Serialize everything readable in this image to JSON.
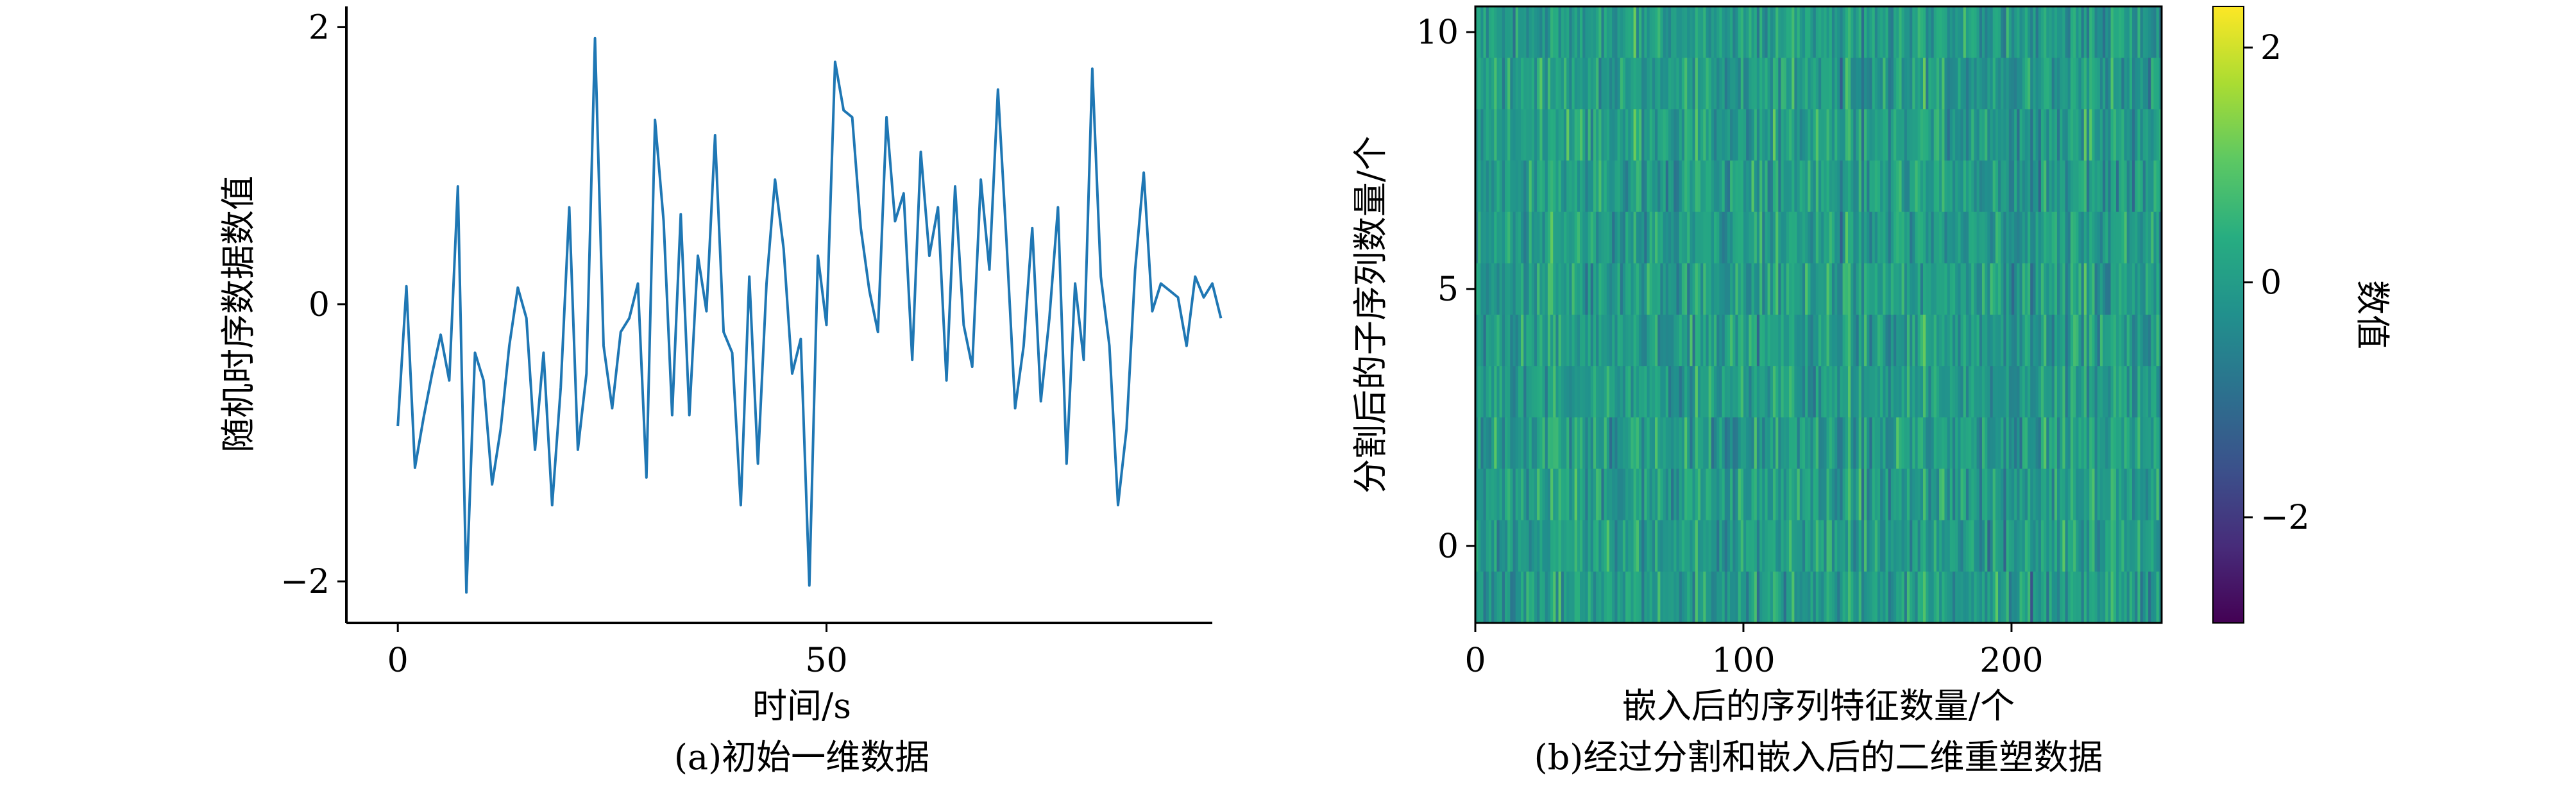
{
  "chart_data": [
    {
      "type": "line",
      "caption": "(a)初始一维数据",
      "xlabel": "时间/s",
      "ylabel": "随机时序数据数值",
      "xlim": [
        -6,
        95
      ],
      "ylim": [
        -2.3,
        2.15
      ],
      "xticks": [
        "0",
        "50"
      ],
      "yticks": [
        "−2",
        "0",
        "2"
      ],
      "xtick_values": [
        0,
        50
      ],
      "ytick_values": [
        -2,
        0,
        2
      ],
      "color": "#1f77b4",
      "grid": false,
      "series": [
        {
          "x": [
            0,
            1,
            2,
            3,
            4,
            5,
            6,
            7,
            8,
            9,
            10,
            11,
            12,
            13,
            14,
            15,
            16,
            17,
            18,
            19,
            20,
            21,
            22,
            23,
            24,
            25,
            26,
            27,
            28,
            29,
            30,
            31,
            32,
            33,
            34,
            35,
            36,
            37,
            38,
            39,
            40,
            41,
            42,
            43,
            44,
            45,
            46,
            47,
            48,
            49,
            50,
            51,
            52,
            53,
            54,
            55,
            56,
            57,
            58,
            59,
            60,
            61,
            62,
            63,
            64,
            65,
            66,
            67,
            68,
            69,
            70,
            71,
            72,
            73,
            74,
            75,
            76,
            77,
            78,
            79,
            80,
            81,
            82,
            83,
            84,
            85,
            86,
            87,
            88,
            89,
            90,
            91,
            92,
            93,
            94,
            95,
            96
          ],
          "y": [
            -0.88,
            0.13,
            -1.18,
            -0.82,
            -0.5,
            -0.22,
            -0.55,
            0.85,
            -2.08,
            -0.35,
            -0.55,
            -1.3,
            -0.9,
            -0.3,
            0.12,
            -0.1,
            -1.05,
            -0.35,
            -1.45,
            -0.6,
            0.7,
            -1.05,
            -0.5,
            1.92,
            -0.3,
            -0.75,
            -0.2,
            -0.1,
            0.15,
            -1.25,
            1.33,
            0.6,
            -0.8,
            0.65,
            -0.8,
            0.35,
            -0.05,
            1.22,
            -0.2,
            -0.35,
            -1.45,
            0.2,
            -1.15,
            0.15,
            0.9,
            0.4,
            -0.5,
            -0.25,
            -2.03,
            0.35,
            -0.15,
            1.75,
            1.4,
            1.35,
            0.55,
            0.1,
            -0.2,
            1.35,
            0.6,
            0.8,
            -0.4,
            1.1,
            0.35,
            0.7,
            -0.55,
            0.85,
            -0.15,
            -0.45,
            0.9,
            0.25,
            1.55,
            0.45,
            -0.75,
            -0.3,
            0.55,
            -0.7,
            -0.1,
            0.7,
            -1.15,
            0.15,
            -0.4,
            1.7,
            0.2,
            -0.3,
            -1.45,
            -0.9,
            0.25,
            0.95,
            -0.05,
            0.15,
            0.1,
            0.05,
            -0.3,
            0.2,
            0.05,
            0.15,
            -0.1
          ]
        }
      ]
    },
    {
      "type": "heatmap",
      "caption": "(b)经过分割和嵌入后的二维重塑数据",
      "xlabel": "嵌入后的序列特征数量/个",
      "ylabel": "分割后的子序列数量/个",
      "xlim": [
        0,
        256
      ],
      "ylim": [
        -1.5,
        10.5
      ],
      "xticks": [
        "0",
        "100",
        "200"
      ],
      "yticks": [
        "0",
        "5",
        "10"
      ],
      "xtick_values": [
        0,
        100,
        200
      ],
      "ytick_values": [
        0,
        5,
        10
      ],
      "rows": 12,
      "cols": 256,
      "colormap": "viridis",
      "value_range": [
        -2.9,
        2.35
      ],
      "colorbar": {
        "label": "数值",
        "ticks": [
          "−2",
          "0",
          "2"
        ],
        "tick_values": [
          -2,
          0,
          2
        ]
      }
    }
  ]
}
